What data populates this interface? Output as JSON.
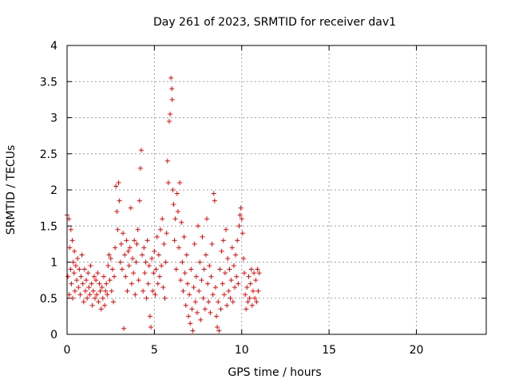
{
  "chart_data": {
    "type": "scatter",
    "title": "Day 261 of 2023, SRMTID for receiver dav1",
    "xlabel": "GPS time / hours",
    "ylabel": "SRMTID / TECUs",
    "xlim": [
      0,
      24
    ],
    "ylim": [
      0,
      4
    ],
    "xticks": [
      0,
      5,
      10,
      15,
      20
    ],
    "yticks": [
      0,
      0.5,
      1,
      1.5,
      2,
      2.5,
      3,
      3.5,
      4
    ],
    "xtick_labels": [
      "0",
      "5",
      "10",
      "15",
      "20"
    ],
    "ytick_labels": [
      "0",
      "0.5",
      "1",
      "1.5",
      "2",
      "2.5",
      "3",
      "3.5",
      "4"
    ],
    "grid": true,
    "marker": "+",
    "marker_color": "#ff0000",
    "series": [
      {
        "name": "dav1",
        "points": [
          [
            0.0,
            1.65
          ],
          [
            0.05,
            0.8
          ],
          [
            0.1,
            1.6
          ],
          [
            0.12,
            0.55
          ],
          [
            0.15,
            1.2
          ],
          [
            0.2,
            0.9
          ],
          [
            0.22,
            1.45
          ],
          [
            0.25,
            0.7
          ],
          [
            0.3,
            1.3
          ],
          [
            0.32,
            0.5
          ],
          [
            0.35,
            1.0
          ],
          [
            0.4,
            0.85
          ],
          [
            0.42,
            1.15
          ],
          [
            0.45,
            0.6
          ],
          [
            0.5,
            0.95
          ],
          [
            0.55,
            0.75
          ],
          [
            0.6,
            1.05
          ],
          [
            0.65,
            0.65
          ],
          [
            0.7,
            0.9
          ],
          [
            0.75,
            0.55
          ],
          [
            0.8,
            0.8
          ],
          [
            0.85,
            1.1
          ],
          [
            0.9,
            0.7
          ],
          [
            0.95,
            0.45
          ],
          [
            1.0,
            0.9
          ],
          [
            1.05,
            0.6
          ],
          [
            1.1,
            0.75
          ],
          [
            1.15,
            0.5
          ],
          [
            1.2,
            0.85
          ],
          [
            1.25,
            0.65
          ],
          [
            1.3,
            0.55
          ],
          [
            1.35,
            0.95
          ],
          [
            1.4,
            0.7
          ],
          [
            1.45,
            0.4
          ],
          [
            1.5,
            0.6
          ],
          [
            1.55,
            0.8
          ],
          [
            1.6,
            0.5
          ],
          [
            1.65,
            0.75
          ],
          [
            1.7,
            0.55
          ],
          [
            1.75,
            0.85
          ],
          [
            1.8,
            0.45
          ],
          [
            1.85,
            0.7
          ],
          [
            1.9,
            0.6
          ],
          [
            1.95,
            0.35
          ],
          [
            2.0,
            0.65
          ],
          [
            2.05,
            0.5
          ],
          [
            2.1,
            0.8
          ],
          [
            2.15,
            0.4
          ],
          [
            2.2,
            0.6
          ],
          [
            2.25,
            0.7
          ],
          [
            2.3,
            0.55
          ],
          [
            2.35,
            0.95
          ],
          [
            2.4,
            1.1
          ],
          [
            2.45,
            0.75
          ],
          [
            2.5,
            1.05
          ],
          [
            2.55,
            0.6
          ],
          [
            2.6,
            0.9
          ],
          [
            2.65,
            0.45
          ],
          [
            2.7,
            0.8
          ],
          [
            2.75,
            1.2
          ],
          [
            2.8,
            2.05
          ],
          [
            2.85,
            1.7
          ],
          [
            2.9,
            1.45
          ],
          [
            2.95,
            2.1
          ],
          [
            3.0,
            1.85
          ],
          [
            3.05,
            1.0
          ],
          [
            3.1,
            1.25
          ],
          [
            3.15,
            0.9
          ],
          [
            3.2,
            1.4
          ],
          [
            3.25,
            0.08
          ],
          [
            3.3,
            1.1
          ],
          [
            3.35,
            0.8
          ],
          [
            3.4,
            1.3
          ],
          [
            3.45,
            0.6
          ],
          [
            3.5,
            1.15
          ],
          [
            3.55,
            0.95
          ],
          [
            3.6,
            1.2
          ],
          [
            3.65,
            1.75
          ],
          [
            3.7,
            0.7
          ],
          [
            3.75,
            1.05
          ],
          [
            3.8,
            0.85
          ],
          [
            3.85,
            1.3
          ],
          [
            3.9,
            0.55
          ],
          [
            3.95,
            1.0
          ],
          [
            4.0,
            1.25
          ],
          [
            4.05,
            1.45
          ],
          [
            4.1,
            0.75
          ],
          [
            4.15,
            1.85
          ],
          [
            4.2,
            2.3
          ],
          [
            4.25,
            2.55
          ],
          [
            4.3,
            1.1
          ],
          [
            4.35,
            0.6
          ],
          [
            4.4,
            1.2
          ],
          [
            4.45,
            0.85
          ],
          [
            4.5,
            1.0
          ],
          [
            4.55,
            0.5
          ],
          [
            4.6,
            1.3
          ],
          [
            4.65,
            0.7
          ],
          [
            4.7,
            0.95
          ],
          [
            4.75,
            0.25
          ],
          [
            4.8,
            0.1
          ],
          [
            4.85,
            1.05
          ],
          [
            4.9,
            0.6
          ],
          [
            4.95,
            0.85
          ],
          [
            5.0,
            1.15
          ],
          [
            5.05,
            0.55
          ],
          [
            5.1,
            0.9
          ],
          [
            5.15,
            1.35
          ],
          [
            5.2,
            0.7
          ],
          [
            5.25,
            1.1
          ],
          [
            5.3,
            0.8
          ],
          [
            5.35,
            1.45
          ],
          [
            5.4,
            0.95
          ],
          [
            5.45,
            1.6
          ],
          [
            5.5,
            0.65
          ],
          [
            5.55,
            1.25
          ],
          [
            5.6,
            0.5
          ],
          [
            5.65,
            1.0
          ],
          [
            5.7,
            1.4
          ],
          [
            5.75,
            2.4
          ],
          [
            5.8,
            2.1
          ],
          [
            5.85,
            2.95
          ],
          [
            5.9,
            3.05
          ],
          [
            5.95,
            3.55
          ],
          [
            6.0,
            3.4
          ],
          [
            6.02,
            3.25
          ],
          [
            6.05,
            2.0
          ],
          [
            6.1,
            1.8
          ],
          [
            6.15,
            1.3
          ],
          [
            6.2,
            1.6
          ],
          [
            6.25,
            0.9
          ],
          [
            6.3,
            1.95
          ],
          [
            6.35,
            1.7
          ],
          [
            6.4,
            1.2
          ],
          [
            6.45,
            2.1
          ],
          [
            6.5,
            0.75
          ],
          [
            6.55,
            1.55
          ],
          [
            6.6,
            1.0
          ],
          [
            6.65,
            0.6
          ],
          [
            6.7,
            1.35
          ],
          [
            6.75,
            0.85
          ],
          [
            6.8,
            0.4
          ],
          [
            6.85,
            1.1
          ],
          [
            6.9,
            0.7
          ],
          [
            6.95,
            0.25
          ],
          [
            7.0,
            0.55
          ],
          [
            7.05,
            0.15
          ],
          [
            7.1,
            0.9
          ],
          [
            7.15,
            0.35
          ],
          [
            7.2,
            0.05
          ],
          [
            7.25,
            0.65
          ],
          [
            7.3,
            1.25
          ],
          [
            7.35,
            0.45
          ],
          [
            7.4,
            0.8
          ],
          [
            7.45,
            0.3
          ],
          [
            7.5,
            1.5
          ],
          [
            7.55,
            0.6
          ],
          [
            7.6,
            1.0
          ],
          [
            7.65,
            0.2
          ],
          [
            7.7,
            0.75
          ],
          [
            7.75,
            1.35
          ],
          [
            7.8,
            0.5
          ],
          [
            7.85,
            0.9
          ],
          [
            7.9,
            0.35
          ],
          [
            7.95,
            1.1
          ],
          [
            8.0,
            1.6
          ],
          [
            8.05,
            0.7
          ],
          [
            8.1,
            0.45
          ],
          [
            8.15,
            0.95
          ],
          [
            8.2,
            0.3
          ],
          [
            8.25,
            0.8
          ],
          [
            8.3,
            1.25
          ],
          [
            8.35,
            0.55
          ],
          [
            8.4,
            1.95
          ],
          [
            8.45,
            1.85
          ],
          [
            8.5,
            0.65
          ],
          [
            8.55,
            0.25
          ],
          [
            8.6,
            0.1
          ],
          [
            8.65,
            0.45
          ],
          [
            8.7,
            0.05
          ],
          [
            8.75,
            0.9
          ],
          [
            8.8,
            0.35
          ],
          [
            8.85,
            1.15
          ],
          [
            8.9,
            0.7
          ],
          [
            8.95,
            1.3
          ],
          [
            9.0,
            0.55
          ],
          [
            9.05,
            0.85
          ],
          [
            9.1,
            1.45
          ],
          [
            9.15,
            0.4
          ],
          [
            9.2,
            1.05
          ],
          [
            9.25,
            0.6
          ],
          [
            9.3,
            0.9
          ],
          [
            9.35,
            0.5
          ],
          [
            9.4,
            0.75
          ],
          [
            9.45,
            1.2
          ],
          [
            9.5,
            0.45
          ],
          [
            9.55,
            0.95
          ],
          [
            9.6,
            0.65
          ],
          [
            9.65,
            1.1
          ],
          [
            9.7,
            0.8
          ],
          [
            9.75,
            1.3
          ],
          [
            9.8,
            0.7
          ],
          [
            9.85,
            1.5
          ],
          [
            9.9,
            1.65
          ],
          [
            9.95,
            1.75
          ],
          [
            10.0,
            1.6
          ],
          [
            10.05,
            1.4
          ],
          [
            10.1,
            1.05
          ],
          [
            10.15,
            0.85
          ],
          [
            10.2,
            0.55
          ],
          [
            10.25,
            0.35
          ],
          [
            10.3,
            0.65
          ],
          [
            10.35,
            0.45
          ],
          [
            10.4,
            0.8
          ],
          [
            10.45,
            0.5
          ],
          [
            10.5,
            0.7
          ],
          [
            10.55,
            0.9
          ],
          [
            10.6,
            0.4
          ],
          [
            10.65,
            0.6
          ],
          [
            10.7,
            0.85
          ],
          [
            10.75,
            0.5
          ],
          [
            10.8,
            0.75
          ],
          [
            10.85,
            0.45
          ],
          [
            10.9,
            0.9
          ],
          [
            10.95,
            0.6
          ],
          [
            11.0,
            0.85
          ]
        ]
      }
    ]
  }
}
